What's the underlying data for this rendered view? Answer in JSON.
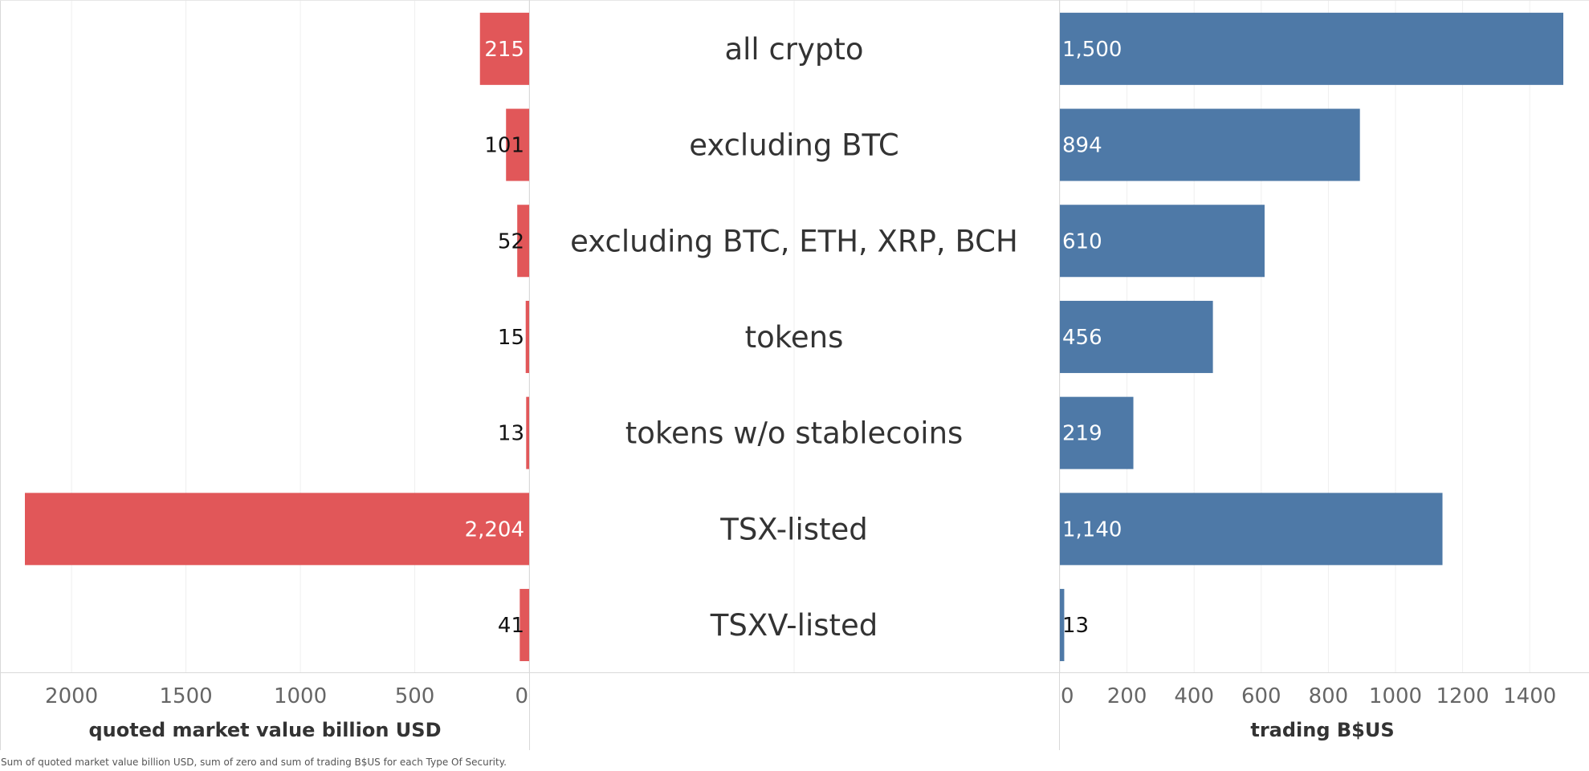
{
  "chart_data": {
    "type": "bar",
    "categories": [
      "all crypto",
      "excluding BTC",
      "excluding BTC, ETH, XRP, BCH",
      "tokens",
      "tokens w/o stablecoins",
      "TSX-listed",
      "TSXV-listed"
    ],
    "left": {
      "xlabel": "quoted market value billion USD",
      "values": [
        215,
        101,
        52,
        15,
        13,
        2204,
        41
      ],
      "value_labels": [
        "215",
        "101",
        "52",
        "15",
        "13",
        "2,204",
        "41"
      ],
      "ticks": [
        "2000",
        "1500",
        "1000",
        "500",
        "0"
      ],
      "xlim": [
        0,
        2204
      ],
      "color": "#e15759",
      "direction": "reversed"
    },
    "right": {
      "xlabel": "trading B$US",
      "values": [
        1500,
        894,
        610,
        456,
        219,
        1140,
        13
      ],
      "value_labels": [
        "1,500",
        "894",
        "610",
        "456",
        "219",
        "1,140",
        "13"
      ],
      "ticks": [
        "0",
        "200",
        "400",
        "600",
        "800",
        "1000",
        "1200",
        "1400"
      ],
      "xlim": [
        0,
        1500
      ],
      "color": "#4e79a7"
    },
    "grid": true,
    "legend": "none"
  },
  "caption": "Sum of quoted market value billion USD, sum of zero and sum of trading B$US for each Type Of Security."
}
